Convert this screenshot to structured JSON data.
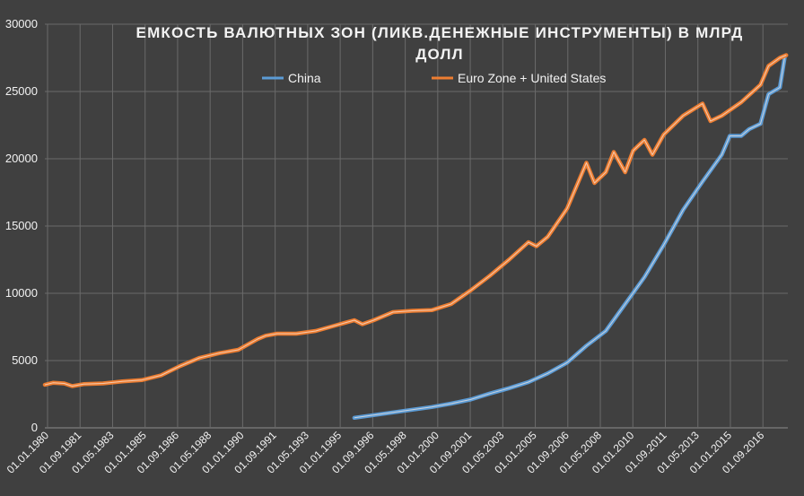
{
  "chart_data": {
    "type": "line",
    "title_line1": "ЕМКОСТЬ ВАЛЮТНЫХ ЗОН (ЛИКВ.ДЕНЕЖНЫЕ ИНСТРУМЕНТЫ) В МЛРД",
    "title_line2": "ДОЛЛ",
    "xlabel": "",
    "ylabel": "",
    "ylim": [
      0,
      30000
    ],
    "y_ticks": [
      "0",
      "5000",
      "10000",
      "15000",
      "20000",
      "25000",
      "30000"
    ],
    "x_range": [
      "1980-01-01",
      "2018-06-01"
    ],
    "x_tick_labels": [
      "01.01.1980",
      "01.09.1981",
      "01.05.1983",
      "01.01.1985",
      "01.09.1986",
      "01.05.1988",
      "01.01.1990",
      "01.09.1991",
      "01.05.1993",
      "01.01.1995",
      "01.09.1996",
      "01.05.1998",
      "01.01.2000",
      "01.09.2001",
      "01.05.2003",
      "01.01.2005",
      "01.09.2006",
      "01.05.2008",
      "01.01.2010",
      "01.09.2011",
      "01.05.2013",
      "01.01.2015",
      "01.09.2016"
    ],
    "grid": true,
    "legend_position": "top",
    "series": [
      {
        "name": "China",
        "color": "#5b9bd5",
        "points": [
          [
            "1996-01-01",
            750
          ],
          [
            "1997-01-01",
            950
          ],
          [
            "1998-01-01",
            1150
          ],
          [
            "1999-01-01",
            1350
          ],
          [
            "2000-01-01",
            1550
          ],
          [
            "2001-01-01",
            1800
          ],
          [
            "2002-01-01",
            2100
          ],
          [
            "2003-01-01",
            2550
          ],
          [
            "2004-01-01",
            2950
          ],
          [
            "2005-01-01",
            3400
          ],
          [
            "2006-01-01",
            4050
          ],
          [
            "2007-01-01",
            4850
          ],
          [
            "2008-01-01",
            6100
          ],
          [
            "2009-01-01",
            7200
          ],
          [
            "2010-01-01",
            9200
          ],
          [
            "2011-01-01",
            11200
          ],
          [
            "2012-01-01",
            13600
          ],
          [
            "2013-01-01",
            16200
          ],
          [
            "2014-01-01",
            18300
          ],
          [
            "2015-01-01",
            20300
          ],
          [
            "2015-06-01",
            21700
          ],
          [
            "2016-01-01",
            21700
          ],
          [
            "2016-06-01",
            22200
          ],
          [
            "2017-01-01",
            22600
          ],
          [
            "2017-06-01",
            24800
          ],
          [
            "2018-01-01",
            25300
          ],
          [
            "2018-04-01",
            27500
          ]
        ]
      },
      {
        "name": "Euro Zone + United States",
        "color": "#ed7d31",
        "points": [
          [
            "1980-01-01",
            3200
          ],
          [
            "1980-06-01",
            3350
          ],
          [
            "1981-01-01",
            3300
          ],
          [
            "1981-06-01",
            3100
          ],
          [
            "1982-01-01",
            3250
          ],
          [
            "1983-01-01",
            3300
          ],
          [
            "1984-01-01",
            3450
          ],
          [
            "1985-01-01",
            3550
          ],
          [
            "1986-01-01",
            3900
          ],
          [
            "1987-01-01",
            4600
          ],
          [
            "1988-01-01",
            5200
          ],
          [
            "1989-01-01",
            5550
          ],
          [
            "1990-01-01",
            5800
          ],
          [
            "1991-01-01",
            6600
          ],
          [
            "1991-06-01",
            6850
          ],
          [
            "1992-01-01",
            7000
          ],
          [
            "1993-01-01",
            7000
          ],
          [
            "1994-01-01",
            7200
          ],
          [
            "1995-01-01",
            7600
          ],
          [
            "1996-01-01",
            8000
          ],
          [
            "1996-06-01",
            7700
          ],
          [
            "1997-01-01",
            8000
          ],
          [
            "1998-01-01",
            8600
          ],
          [
            "1999-01-01",
            8700
          ],
          [
            "2000-01-01",
            8750
          ],
          [
            "2001-01-01",
            9200
          ],
          [
            "2002-01-01",
            10200
          ],
          [
            "2003-01-01",
            11300
          ],
          [
            "2004-01-01",
            12500
          ],
          [
            "2005-01-01",
            13800
          ],
          [
            "2005-06-01",
            13500
          ],
          [
            "2006-01-01",
            14200
          ],
          [
            "2007-01-01",
            16300
          ],
          [
            "2008-01-01",
            19700
          ],
          [
            "2008-06-01",
            18200
          ],
          [
            "2009-01-01",
            19000
          ],
          [
            "2009-06-01",
            20500
          ],
          [
            "2010-01-01",
            19000
          ],
          [
            "2010-06-01",
            20600
          ],
          [
            "2011-01-01",
            21400
          ],
          [
            "2011-06-01",
            20300
          ],
          [
            "2012-01-01",
            21800
          ],
          [
            "2013-01-01",
            23200
          ],
          [
            "2014-01-01",
            24100
          ],
          [
            "2014-06-01",
            22800
          ],
          [
            "2015-01-01",
            23200
          ],
          [
            "2016-01-01",
            24200
          ],
          [
            "2017-01-01",
            25500
          ],
          [
            "2017-06-01",
            26900
          ],
          [
            "2018-01-01",
            27500
          ],
          [
            "2018-05-01",
            27700
          ]
        ]
      }
    ]
  }
}
